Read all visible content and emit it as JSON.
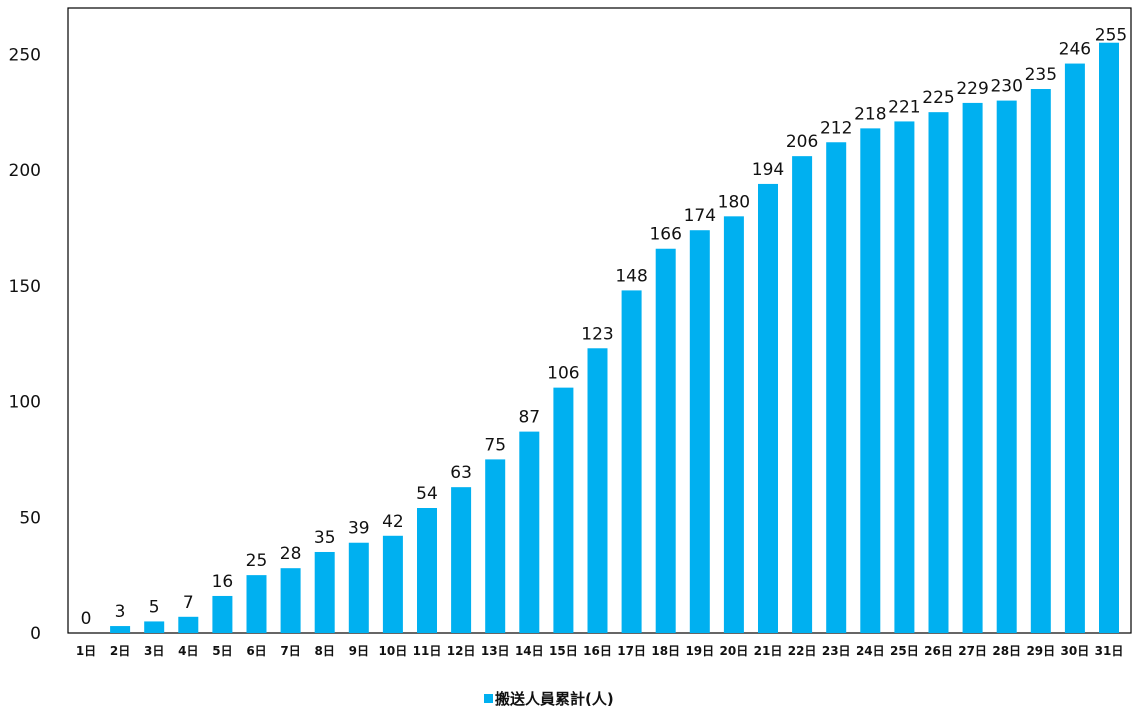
{
  "chart_data": {
    "type": "bar",
    "categories": [
      "1日",
      "2日",
      "3日",
      "4日",
      "5日",
      "6日",
      "7日",
      "8日",
      "9日",
      "10日",
      "11日",
      "12日",
      "13日",
      "14日",
      "15日",
      "16日",
      "17日",
      "18日",
      "19日",
      "20日",
      "21日",
      "22日",
      "23日",
      "24日",
      "25日",
      "26日",
      "27日",
      "28日",
      "29日",
      "30日",
      "31日"
    ],
    "series": [
      {
        "name": "搬送人員累計(人)",
        "values": [
          0,
          3,
          5,
          7,
          16,
          25,
          28,
          35,
          39,
          42,
          54,
          63,
          75,
          87,
          106,
          123,
          148,
          166,
          174,
          180,
          194,
          206,
          212,
          218,
          221,
          225,
          229,
          230,
          235,
          246,
          255
        ]
      }
    ],
    "ylim": [
      0,
      270
    ],
    "yticks": [
      0,
      50,
      100,
      150,
      200,
      250
    ],
    "grid": false,
    "legend": "bottom-center",
    "colors": {
      "bar": "#00b0f0",
      "label": "#111111",
      "highlight_label": "#ff0000"
    },
    "highlight_index": 30
  }
}
